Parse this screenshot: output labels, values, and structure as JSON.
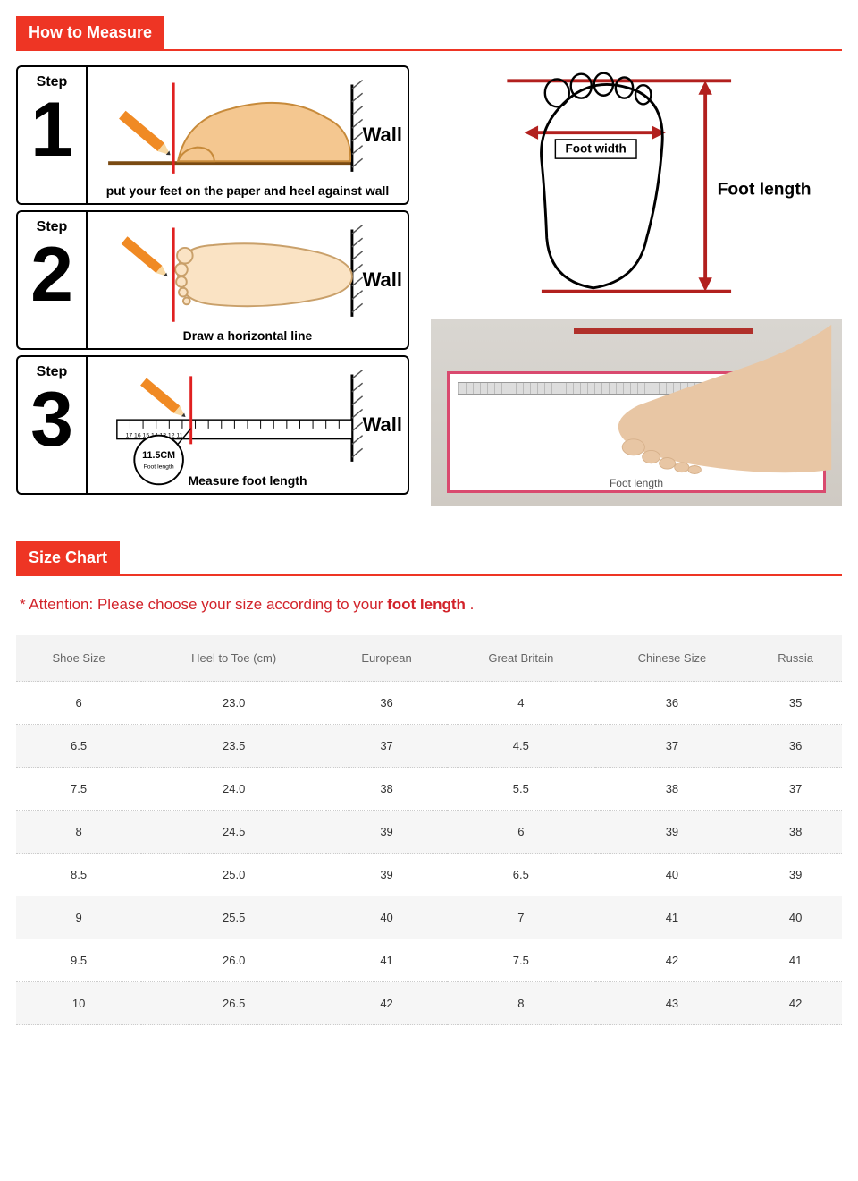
{
  "measure": {
    "header": "How to Measure",
    "steps": [
      {
        "label": "Step",
        "num": "1",
        "wall": "Wall",
        "caption": "put your feet on the paper and heel against wall"
      },
      {
        "label": "Step",
        "num": "2",
        "wall": "Wall",
        "caption": "Draw a horizontal line"
      },
      {
        "label": "Step",
        "num": "3",
        "wall": "Wall",
        "caption": "Measure foot length",
        "bubble": "11.5CM",
        "bubble_sub": "Foot length"
      }
    ],
    "outline": {
      "width_label": "Foot width",
      "length_label": "Foot length"
    },
    "photo": {
      "caption": "Foot length"
    },
    "colors": {
      "accent_red": "#ee3524",
      "step_border": "#000000",
      "foot_fill": "#f4c790",
      "foot_outline": "#f3b16c",
      "pencil": "#f08a24",
      "red_line": "#e02020",
      "wall_hatch": "#555555",
      "bubble_border": "#000000",
      "photo_paper_border": "#d94a6f",
      "diagram_red": "#b2201e"
    }
  },
  "chart": {
    "header": "Size Chart",
    "attention_prefix": "* Attention: Please choose your size according to your ",
    "attention_bold": "foot length",
    "attention_suffix": " .",
    "columns": [
      "Shoe Size",
      "Heel to Toe (cm)",
      "European",
      "Great Britain",
      "Chinese Size",
      "Russia"
    ],
    "rows": [
      [
        "6",
        "23.0",
        "36",
        "4",
        "36",
        "35"
      ],
      [
        "6.5",
        "23.5",
        "37",
        "4.5",
        "37",
        "36"
      ],
      [
        "7.5",
        "24.0",
        "38",
        "5.5",
        "38",
        "37"
      ],
      [
        "8",
        "24.5",
        "39",
        "6",
        "39",
        "38"
      ],
      [
        "8.5",
        "25.0",
        "39",
        "6.5",
        "40",
        "39"
      ],
      [
        "9",
        "25.5",
        "40",
        "7",
        "41",
        "40"
      ],
      [
        "9.5",
        "26.0",
        "41",
        "7.5",
        "42",
        "41"
      ],
      [
        "10",
        "26.5",
        "42",
        "8",
        "43",
        "42"
      ]
    ],
    "header_bg": "#f3f3f3",
    "row_alt_bg": "#f6f6f6",
    "border_color": "#cccccc",
    "text_color": "#333333"
  }
}
